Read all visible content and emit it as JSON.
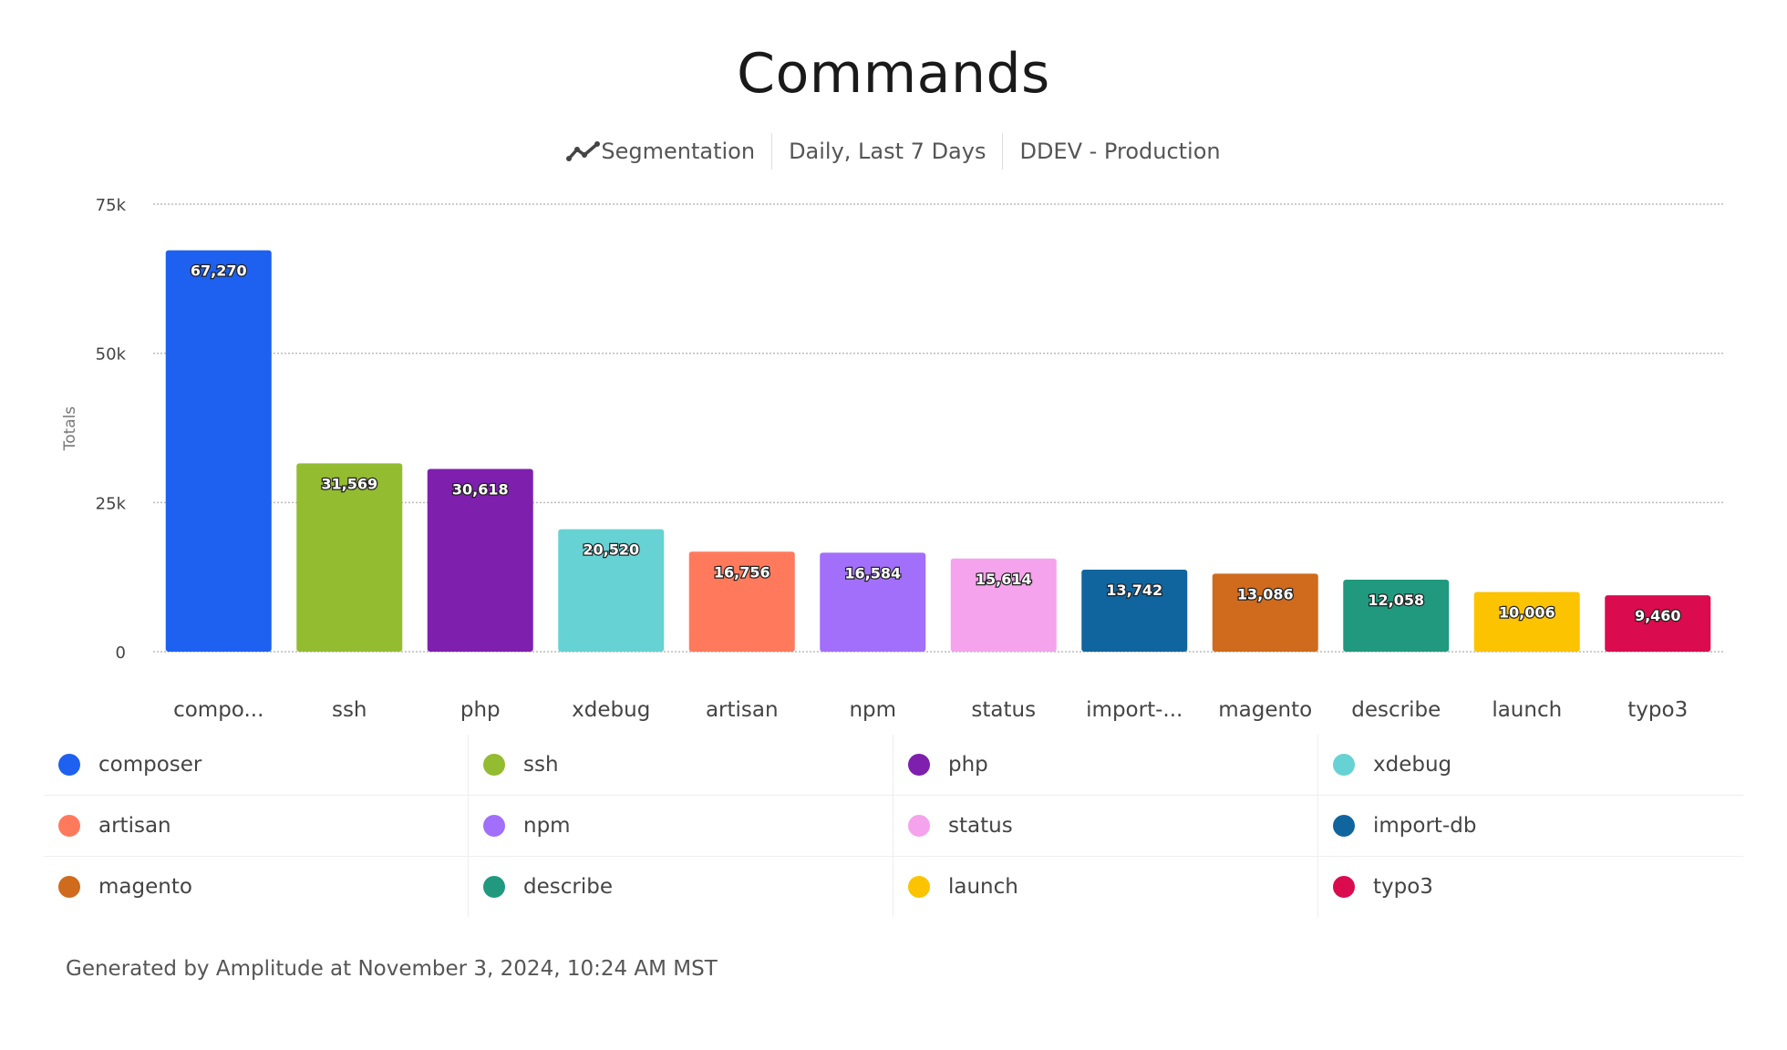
{
  "header": {
    "title": "Commands",
    "subtitle": {
      "icon": "line-chart-icon",
      "analysis": "Segmentation",
      "range": "Daily, Last 7 Days",
      "project": "DDEV - Production"
    }
  },
  "chart_data": {
    "type": "bar",
    "ylabel": "Totals",
    "ylim": [
      0,
      75000
    ],
    "yticks": [
      {
        "value": 0,
        "label": "0"
      },
      {
        "value": 25000,
        "label": "25k"
      },
      {
        "value": 50000,
        "label": "50k"
      },
      {
        "value": 75000,
        "label": "75k"
      }
    ],
    "grid": true,
    "categories": [
      "composer",
      "ssh",
      "php",
      "xdebug",
      "artisan",
      "npm",
      "status",
      "import-db",
      "magento",
      "describe",
      "launch",
      "typo3"
    ],
    "tick_labels": [
      "compo...",
      "ssh",
      "php",
      "xdebug",
      "artisan",
      "npm",
      "status",
      "import-...",
      "magento",
      "describe",
      "launch",
      "typo3"
    ],
    "values": [
      67270,
      31569,
      30618,
      20520,
      16756,
      16584,
      15614,
      13742,
      13086,
      12058,
      10006,
      9460
    ],
    "data_labels": [
      "67,270",
      "31,569",
      "30,618",
      "20,520",
      "16,756",
      "16,584",
      "15,614",
      "13,742",
      "13,086",
      "12,058",
      "10,006",
      "9,460"
    ],
    "colors": [
      "#1E61F0",
      "#93BC31",
      "#7E1FAE",
      "#66D2D3",
      "#FF7A5C",
      "#A26FFA",
      "#F5A3EC",
      "#11659E",
      "#D06A1D",
      "#20997F",
      "#FBC300",
      "#DA0B4E"
    ],
    "legend_placement": "bottom"
  },
  "footer": {
    "text": "Generated by Amplitude at November 3, 2024, 10:24 AM MST"
  }
}
